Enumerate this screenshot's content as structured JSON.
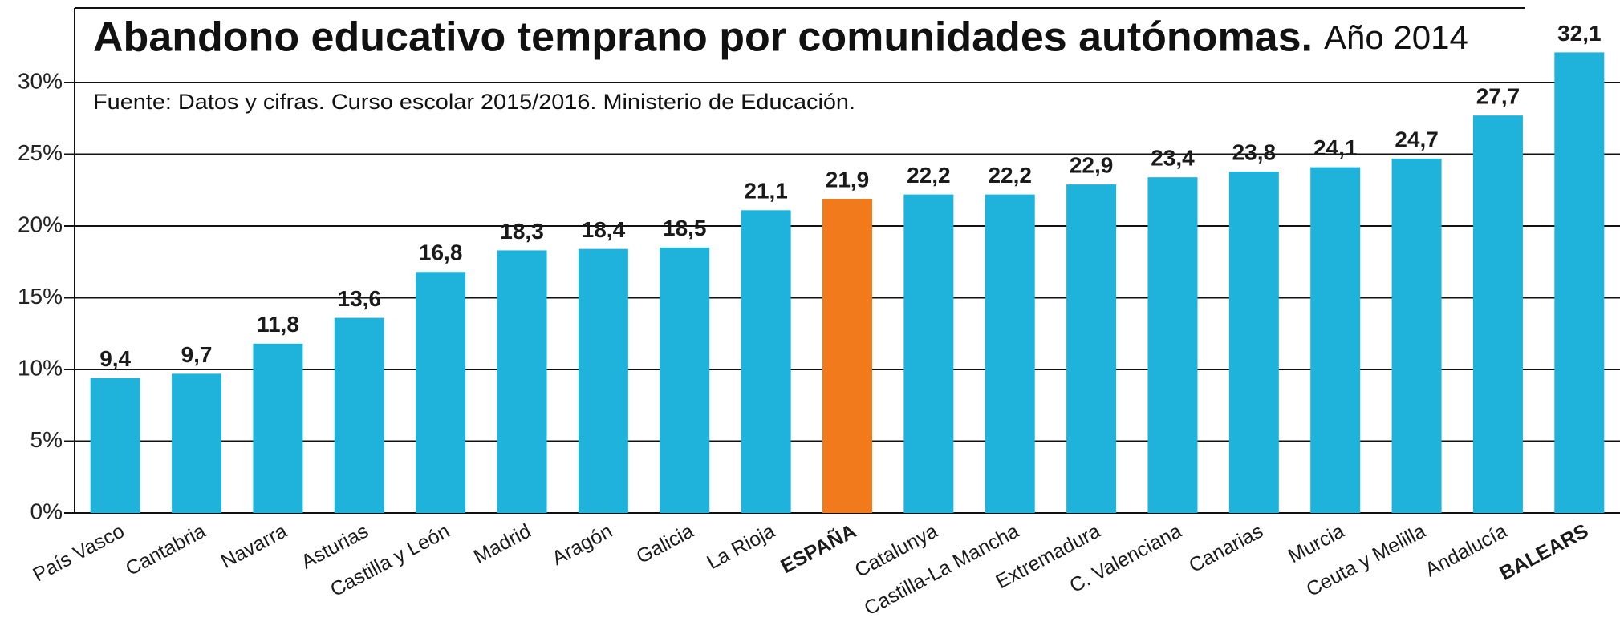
{
  "chart_data": {
    "type": "bar",
    "title": "Abandono educativo temprano por comunidades autónomas.",
    "subtitle": "Año 2014",
    "source": "Fuente: Datos y cifras. Curso escolar 2015/2016. Ministerio de Educación.",
    "categories": [
      "País Vasco",
      "Cantabria",
      "Navarra",
      "Asturias",
      "Castilla y León",
      "Madrid",
      "Aragón",
      "Galicia",
      "La Rioja",
      "ESPAÑA",
      "Catalunya",
      "Castilla-La Mancha",
      "Extremadura",
      "C. Valenciana",
      "Canarias",
      "Murcia",
      "Ceuta y Melilla",
      "Andalucía",
      "BALEARS"
    ],
    "values": [
      9.4,
      9.7,
      11.8,
      13.6,
      16.8,
      18.3,
      18.4,
      18.5,
      21.1,
      21.9,
      22.2,
      22.2,
      22.9,
      23.4,
      23.8,
      24.1,
      24.7,
      27.7,
      32.1
    ],
    "value_labels": [
      "9,4",
      "9,7",
      "11,8",
      "13,6",
      "16,8",
      "18,3",
      "18,4",
      "18,5",
      "21,1",
      "21,9",
      "22,2",
      "22,2",
      "22,9",
      "23,4",
      "23,8",
      "24,1",
      "24,7",
      "27,7",
      "32,1"
    ],
    "colors": [
      "#1fb3dc",
      "#1fb3dc",
      "#1fb3dc",
      "#1fb3dc",
      "#1fb3dc",
      "#1fb3dc",
      "#1fb3dc",
      "#1fb3dc",
      "#1fb3dc",
      "#f07a1c",
      "#1fb3dc",
      "#1fb3dc",
      "#1fb3dc",
      "#1fb3dc",
      "#1fb3dc",
      "#1fb3dc",
      "#1fb3dc",
      "#1fb3dc",
      "#1fb3dc"
    ],
    "bold_labels": [
      9,
      18
    ],
    "ylim": [
      0,
      35
    ],
    "yticks": [
      {
        "value": 0,
        "label": "0%"
      },
      {
        "value": 5,
        "label": "5%"
      },
      {
        "value": 10,
        "label": "10%"
      },
      {
        "value": 15,
        "label": "15%"
      },
      {
        "value": 20,
        "label": "20%"
      },
      {
        "value": 25,
        "label": "25%"
      },
      {
        "value": 30,
        "label": "30%"
      }
    ],
    "grid": true
  }
}
